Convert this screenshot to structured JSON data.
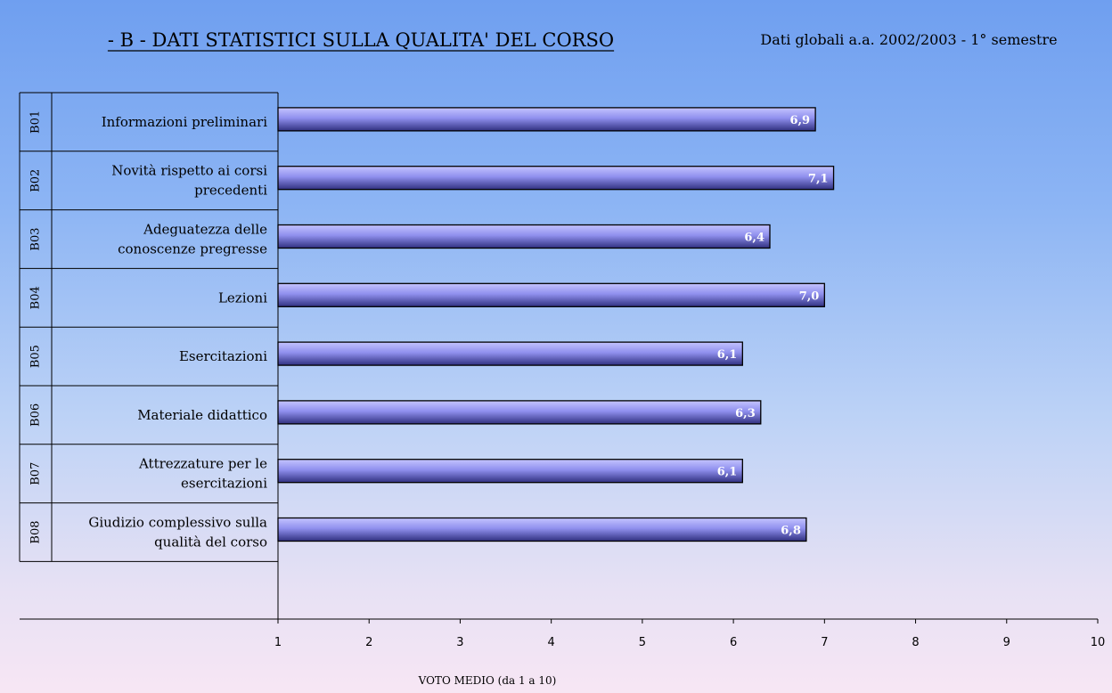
{
  "title": "- B - DATI STATISTICI SULLA QUALITA' DEL CORSO",
  "subtitle": "Dati globali a.a. 2002/2003 - 1° semestre",
  "colors": {
    "bar_light": "#c4c4ff",
    "bar_mid": "#9090ee",
    "bar_dark": "#303080",
    "bar_outline": "#000000"
  },
  "chart_data": {
    "type": "bar",
    "orientation": "horizontal",
    "codes": [
      "B01",
      "B02",
      "B03",
      "B04",
      "B05",
      "B06",
      "B07",
      "B08"
    ],
    "categories": [
      [
        "Informazioni preliminari"
      ],
      [
        "Novità rispetto ai corsi",
        "precedenti"
      ],
      [
        "Adeguatezza delle",
        "conoscenze pregresse"
      ],
      [
        "Lezioni"
      ],
      [
        "Esercitazioni"
      ],
      [
        "Materiale didattico"
      ],
      [
        "Attrezzature per le",
        "esercitazioni"
      ],
      [
        "Giudizio complessivo sulla",
        "qualità del corso"
      ]
    ],
    "values": [
      6.9,
      7.1,
      6.4,
      7.0,
      6.1,
      6.3,
      6.1,
      6.8
    ],
    "value_labels": [
      "6,9",
      "7,1",
      "6,4",
      "7,0",
      "6,1",
      "6,3",
      "6,1",
      "6,8"
    ],
    "xlim": [
      1,
      10
    ],
    "xticks": [
      "1",
      "2",
      "3",
      "4",
      "5",
      "6",
      "7",
      "8",
      "9",
      "10"
    ],
    "xlabel": "VOTO MEDIO (da 1 a 10)",
    "grid": false
  }
}
